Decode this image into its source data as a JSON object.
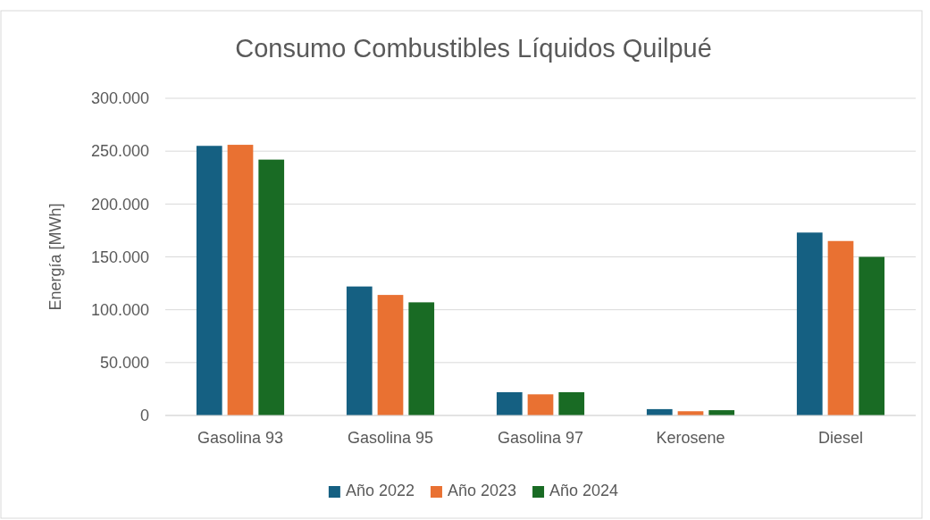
{
  "chart_data": {
    "type": "bar",
    "title": "Consumo Combustibles Líquidos Quilpué",
    "ylabel": "Energía  [MWh]",
    "categories": [
      "Gasolina 93",
      "Gasolina 95",
      "Gasolina 97",
      "Kerosene",
      "Diesel"
    ],
    "series": [
      {
        "name": "Año 2022",
        "color": "#156082",
        "values": [
          255000,
          122000,
          22000,
          6000,
          173000
        ]
      },
      {
        "name": "Año 2023",
        "color": "#e97132",
        "values": [
          256000,
          114000,
          20000,
          4000,
          165000
        ]
      },
      {
        "name": "Año 2024",
        "color": "#196b24",
        "values": [
          242000,
          107000,
          22000,
          5000,
          150000
        ]
      }
    ],
    "ylim": [
      0,
      300000
    ],
    "yticks": [
      {
        "value": 0,
        "label": "0"
      },
      {
        "value": 50000,
        "label": "50.000"
      },
      {
        "value": 100000,
        "label": "100.000"
      },
      {
        "value": 150000,
        "label": "150.000"
      },
      {
        "value": 200000,
        "label": "200.000"
      },
      {
        "value": 250000,
        "label": "250.000"
      },
      {
        "value": 300000,
        "label": "300.000"
      }
    ],
    "grid": "y",
    "legend": "bottom"
  }
}
